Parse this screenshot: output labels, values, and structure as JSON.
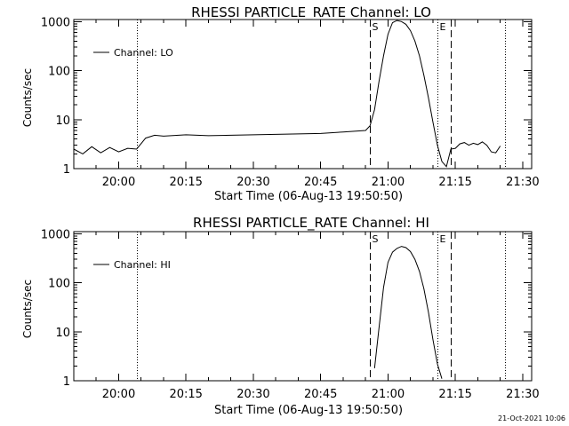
{
  "footer": {
    "timestamp": "21-Oct-2021 10:06"
  },
  "chart_data": [
    {
      "type": "line",
      "title": "RHESSI PARTICLE_RATE Channel: LO",
      "xlabel": "Start Time (06-Aug-13 19:50:50)",
      "ylabel": "Counts/sec",
      "y_scale": "log",
      "xlim": [
        "19:50",
        "21:32"
      ],
      "ylim": [
        1,
        1100
      ],
      "x_ticks": [
        "20:00",
        "20:15",
        "20:30",
        "20:45",
        "21:00",
        "21:15",
        "21:30"
      ],
      "y_ticks": [
        "1",
        "10",
        "100",
        "1000"
      ],
      "legend": {
        "position": "top-left",
        "label": "Channel: LO"
      },
      "markers": [
        {
          "time": "20:04",
          "style": "dotted",
          "label": ""
        },
        {
          "time": "20:56",
          "style": "dashed",
          "label": "S"
        },
        {
          "time": "21:11",
          "style": "dotted",
          "label": "E"
        },
        {
          "time": "21:14",
          "style": "dashed",
          "label": ""
        },
        {
          "time": "21:26",
          "style": "dotted",
          "label": ""
        }
      ],
      "series": [
        {
          "name": "Channel: LO",
          "x": [
            "19:50",
            "19:52",
            "19:54",
            "19:56",
            "19:58",
            "20:00",
            "20:02",
            "20:04",
            "20:06",
            "20:08",
            "20:10",
            "20:15",
            "20:20",
            "20:25",
            "20:30",
            "20:35",
            "20:40",
            "20:45",
            "20:50",
            "20:55",
            "20:56",
            "20:57",
            "20:58",
            "20:59",
            "21:00",
            "21:01",
            "21:02",
            "21:03",
            "21:04",
            "21:05",
            "21:06",
            "21:07",
            "21:08",
            "21:09",
            "21:10",
            "21:11",
            "21:12",
            "21:13",
            "21:14",
            "21:15",
            "21:16",
            "21:17",
            "21:18",
            "21:19",
            "21:20",
            "21:21",
            "21:22",
            "21:23",
            "21:24",
            "21:25"
          ],
          "y": [
            2.5,
            2.0,
            2.8,
            2.1,
            2.7,
            2.2,
            2.6,
            2.5,
            4.2,
            4.8,
            4.6,
            4.9,
            4.7,
            4.8,
            4.9,
            5.0,
            5.1,
            5.2,
            5.6,
            6.0,
            7.5,
            16,
            60,
            200,
            550,
            950,
            1050,
            1000,
            880,
            650,
            400,
            200,
            80,
            28,
            9,
            3,
            1.4,
            1.1,
            2.5,
            2.6,
            3.2,
            3.4,
            3.0,
            3.3,
            3.1,
            3.5,
            3.0,
            2.2,
            2.1,
            2.9
          ]
        }
      ]
    },
    {
      "type": "line",
      "title": "RHESSI PARTICLE_RATE Channel: HI",
      "xlabel": "Start Time (06-Aug-13 19:50:50)",
      "ylabel": "Counts/sec",
      "y_scale": "log",
      "xlim": [
        "19:50",
        "21:32"
      ],
      "ylim": [
        1,
        1100
      ],
      "x_ticks": [
        "20:00",
        "20:15",
        "20:30",
        "20:45",
        "21:00",
        "21:15",
        "21:30"
      ],
      "y_ticks": [
        "1",
        "10",
        "100",
        "1000"
      ],
      "legend": {
        "position": "top-left",
        "label": "Channel: HI"
      },
      "markers": [
        {
          "time": "20:04",
          "style": "dotted",
          "label": ""
        },
        {
          "time": "20:56",
          "style": "dashed",
          "label": "S"
        },
        {
          "time": "21:11",
          "style": "dotted",
          "label": "E"
        },
        {
          "time": "21:14",
          "style": "dashed",
          "label": ""
        },
        {
          "time": "21:26",
          "style": "dotted",
          "label": ""
        }
      ],
      "series": [
        {
          "name": "Channel: HI",
          "x": [
            "20:57",
            "20:58",
            "20:59",
            "21:00",
            "21:01",
            "21:02",
            "21:03",
            "21:04",
            "21:05",
            "21:06",
            "21:07",
            "21:08",
            "21:09",
            "21:10",
            "21:11",
            "21:12"
          ],
          "y": [
            1.8,
            12,
            80,
            260,
            420,
            500,
            550,
            520,
            430,
            300,
            170,
            75,
            25,
            7,
            2.2,
            1.1
          ]
        }
      ]
    }
  ]
}
